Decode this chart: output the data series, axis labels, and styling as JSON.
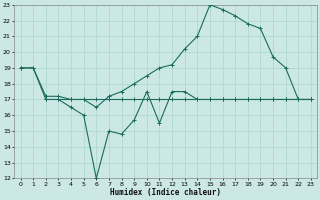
{
  "xlabel": "Humidex (Indice chaleur)",
  "xlim": [
    -0.5,
    23.5
  ],
  "ylim": [
    12,
    23
  ],
  "yticks": [
    12,
    13,
    14,
    15,
    16,
    17,
    18,
    19,
    20,
    21,
    22,
    23
  ],
  "xticks": [
    0,
    1,
    2,
    3,
    4,
    5,
    6,
    7,
    8,
    9,
    10,
    11,
    12,
    13,
    14,
    15,
    16,
    17,
    18,
    19,
    20,
    21,
    22,
    23
  ],
  "bg_color": "#cce8e4",
  "line_color": "#1a6b5e",
  "grid_color": "#b0d8d4",
  "lines": [
    {
      "x": [
        2,
        3,
        4,
        5,
        6,
        7,
        8,
        9,
        10,
        11,
        12,
        13,
        14,
        15,
        16,
        17,
        18,
        19,
        20,
        21,
        22,
        23
      ],
      "y": [
        17,
        17,
        17,
        17,
        17,
        17,
        17,
        17,
        17,
        17,
        17,
        17,
        17,
        17,
        17,
        17,
        17,
        17,
        17,
        17,
        17,
        17
      ]
    },
    {
      "x": [
        0,
        1,
        2,
        3,
        4,
        5,
        6,
        7,
        8,
        9,
        10,
        11,
        12,
        13,
        14,
        15,
        16,
        17,
        18,
        19,
        20,
        21,
        22,
        23
      ],
      "y": [
        19,
        19,
        17,
        17,
        16.5,
        16,
        12,
        15,
        14.8,
        15.7,
        17.5,
        15.5,
        17.5,
        17.5,
        17,
        17,
        17,
        17,
        17,
        17,
        17,
        17,
        17,
        17
      ]
    },
    {
      "x": [
        0,
        1,
        2,
        3,
        4,
        5,
        6,
        7,
        8,
        9,
        10,
        11,
        12,
        13,
        14,
        15,
        16,
        17,
        18,
        19,
        20,
        21,
        22,
        23
      ],
      "y": [
        19,
        19,
        17.2,
        17.2,
        17.0,
        17.0,
        16.5,
        17.2,
        17.5,
        18.0,
        18.5,
        19.0,
        19.2,
        20.2,
        21.0,
        23.0,
        22.7,
        22.3,
        21.8,
        21.5,
        19.7,
        19.0,
        17.0,
        17.0
      ]
    }
  ]
}
